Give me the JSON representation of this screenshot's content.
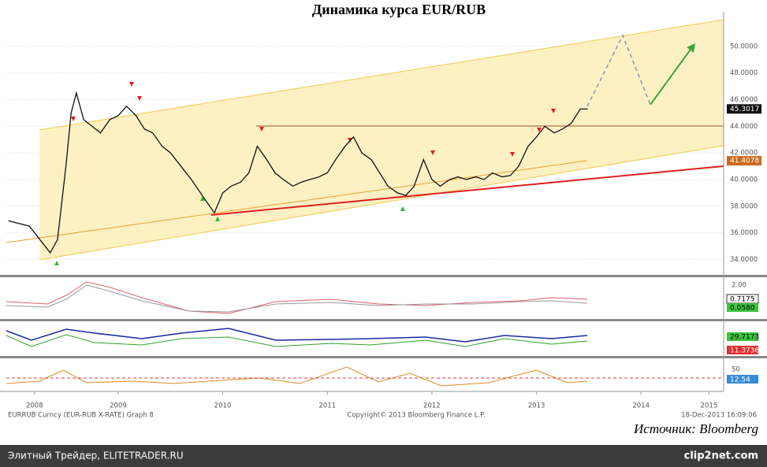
{
  "chart_data": {
    "type": "line",
    "title": "Динамика курса EUR/RUB",
    "x": [
      2008.45,
      2008.55,
      2008.65,
      2008.75,
      2008.85,
      2008.92,
      2009.0,
      2009.05,
      2009.1,
      2009.17,
      2009.25,
      2009.33,
      2009.42,
      2009.5,
      2009.58,
      2009.67,
      2009.75,
      2009.83,
      2009.92,
      2010.0,
      2010.1,
      2010.2,
      2010.33,
      2010.42,
      2010.5,
      2010.58,
      2010.67,
      2010.75,
      2010.83,
      2010.92,
      2011.0,
      2011.08,
      2011.17,
      2011.25,
      2011.33,
      2011.42,
      2011.5,
      2011.58,
      2011.67,
      2011.75,
      2011.83,
      2011.92,
      2012.0,
      2012.08,
      2012.17,
      2012.25,
      2012.33,
      2012.42,
      2012.5,
      2012.58,
      2012.67,
      2012.75,
      2012.83,
      2012.92,
      2013.0,
      2013.08,
      2013.17,
      2013.25,
      2013.33,
      2013.42,
      2013.5,
      2013.58,
      2013.67,
      2013.75,
      2013.83,
      2013.92,
      2013.99
    ],
    "values": [
      36.9,
      36.7,
      36.5,
      35.5,
      34.5,
      35.5,
      41,
      45,
      46.5,
      44.5,
      44,
      43.5,
      44.5,
      44.8,
      45.5,
      44.8,
      43.8,
      43.5,
      42.5,
      42,
      41,
      40,
      38.5,
      37.5,
      39,
      39.5,
      39.8,
      40.5,
      42.5,
      41.5,
      40.5,
      40,
      39.5,
      39.8,
      40,
      40.2,
      40.5,
      41.5,
      42.5,
      43.2,
      42,
      41.5,
      40.5,
      39.5,
      39,
      38.8,
      39.5,
      41.5,
      40,
      39.5,
      40,
      40.2,
      40,
      40.2,
      40,
      40.5,
      40.2,
      40.3,
      41,
      42.5,
      43.2,
      44,
      43.5,
      43.8,
      44.2,
      45.3,
      45.3
    ],
    "color": "#111111",
    "xlim": [
      2008.43,
      2015.29
    ],
    "xticks": [
      {
        "value": 2008.7,
        "label": "2008"
      },
      {
        "value": 2009.5,
        "label": "2009"
      },
      {
        "value": 2010.5,
        "label": "2010"
      },
      {
        "value": 2011.5,
        "label": "2011"
      },
      {
        "value": 2012.5,
        "label": "2012"
      },
      {
        "value": 2013.5,
        "label": "2013"
      },
      {
        "value": 2014.5,
        "label": "2014"
      },
      {
        "value": 2015.15,
        "label": "2015"
      }
    ],
    "ylim": [
      32.9,
      52.3
    ],
    "yticks": [
      {
        "value": 34,
        "label": "34.0000"
      },
      {
        "value": 36,
        "label": "36.0000"
      },
      {
        "value": 38,
        "label": "38.0000"
      },
      {
        "value": 40,
        "label": "40.0000"
      },
      {
        "value": 42,
        "label": "42.0000"
      },
      {
        "value": 44,
        "label": "44.0000"
      },
      {
        "value": 46,
        "label": "46.0000"
      },
      {
        "value": 48,
        "label": "48.0000"
      },
      {
        "value": 50,
        "label": "50.0000"
      }
    ],
    "grid": true,
    "price_tags": [
      45.3017,
      41.4078
    ]
  },
  "panels": {
    "labels": [
      "2.00",
      "0.7175",
      "0.0580",
      "29.7173",
      "11.3736",
      "50",
      "12.54"
    ]
  },
  "footer": {
    "ticker": "EURRUB Curncy (EUR-RUB X-RATE) Graph 8",
    "copyright": "Copyright© 2013 Bloomberg Finance L.P.",
    "timestamp": "18-Dec-2013 16:09:06",
    "source": "Источник: Bloomberg"
  },
  "bottom_bar": {
    "site": "Элитный Трейдер, ELITETRADER.RU",
    "brand": "clip2net.com"
  }
}
